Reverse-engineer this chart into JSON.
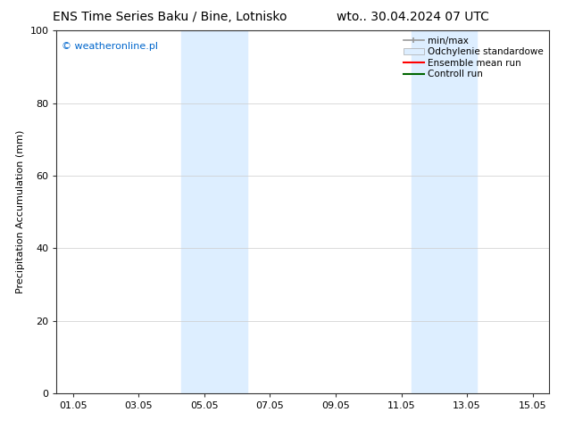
{
  "title_left": "ENS Time Series Baku / Bine, Lotnisko",
  "title_right": "wto.. 30.04.2024 07 UTC",
  "ylabel": "Precipitation Accumulation (mm)",
  "watermark": "© weatheronline.pl",
  "watermark_color": "#0066cc",
  "ylim": [
    0,
    100
  ],
  "xtick_labels": [
    "01.05",
    "03.05",
    "05.05",
    "07.05",
    "09.05",
    "11.05",
    "13.05",
    "15.05"
  ],
  "xtick_positions": [
    0,
    2,
    4,
    6,
    8,
    10,
    12,
    14
  ],
  "ytick_labels": [
    "0",
    "20",
    "40",
    "60",
    "80",
    "100"
  ],
  "ytick_positions": [
    0,
    20,
    40,
    60,
    80,
    100
  ],
  "shaded_bands": [
    {
      "x_start": 3.3,
      "x_end": 5.3,
      "color": "#ddeeff",
      "alpha": 1.0
    },
    {
      "x_start": 10.3,
      "x_end": 12.3,
      "color": "#ddeeff",
      "alpha": 1.0
    }
  ],
  "legend_entries": [
    {
      "label": "min/max",
      "color": "#999999",
      "type": "errorbar"
    },
    {
      "label": "Odchylenie standardowe",
      "color": "#ddeeff",
      "type": "fill"
    },
    {
      "label": "Ensemble mean run",
      "color": "#ff0000",
      "type": "line"
    },
    {
      "label": "Controll run",
      "color": "#006600",
      "type": "line"
    }
  ],
  "background_color": "#ffffff",
  "grid_color": "#cccccc",
  "title_fontsize": 10,
  "axis_label_fontsize": 8,
  "tick_fontsize": 8,
  "watermark_fontsize": 8,
  "legend_fontsize": 7.5
}
